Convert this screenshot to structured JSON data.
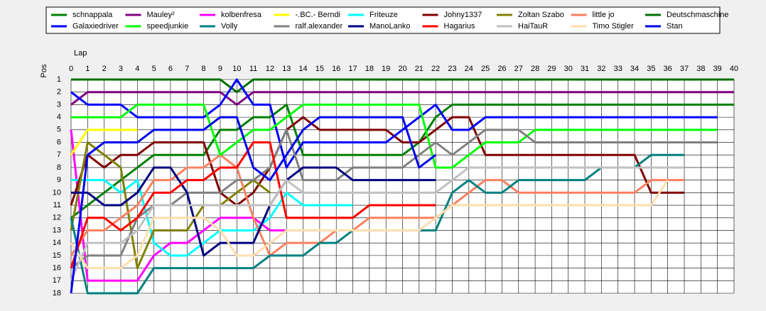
{
  "chart_data": {
    "type": "line",
    "x_label": "Lap",
    "y_label": "Pos",
    "x": [
      0,
      1,
      2,
      3,
      4,
      5,
      6,
      7,
      8,
      9,
      10,
      11,
      12,
      13,
      14,
      15,
      16,
      17,
      18,
      19,
      20,
      21,
      22,
      23,
      24,
      25,
      26,
      27,
      28,
      29,
      30,
      31,
      32,
      33,
      34,
      35,
      36,
      37,
      38,
      39,
      40
    ],
    "xlim": [
      0,
      40
    ],
    "xticks": [
      0,
      1,
      2,
      3,
      4,
      5,
      6,
      7,
      8,
      9,
      10,
      11,
      12,
      13,
      14,
      15,
      16,
      17,
      18,
      19,
      20,
      21,
      22,
      23,
      24,
      25,
      26,
      27,
      28,
      29,
      30,
      31,
      32,
      33,
      34,
      35,
      36,
      37,
      38,
      39,
      40
    ],
    "ylim": [
      18,
      1
    ],
    "yticks": [
      1,
      2,
      3,
      4,
      5,
      6,
      7,
      8,
      9,
      10,
      11,
      12,
      13,
      14,
      15,
      16,
      17,
      18
    ],
    "grid": true,
    "series": [
      {
        "name": "schnappala",
        "color": "#008000",
        "values": [
          12,
          11,
          10,
          9,
          8,
          7,
          7,
          7,
          7,
          5,
          5,
          4,
          4,
          3,
          7,
          7,
          7,
          7,
          7,
          7,
          7,
          6,
          4,
          3,
          3,
          3,
          3,
          3,
          3,
          3,
          3,
          3,
          3,
          3,
          3,
          3,
          3,
          3,
          3,
          3,
          3
        ]
      },
      {
        "name": "Mauley²",
        "color": "#800080",
        "values": [
          3,
          2,
          2,
          2,
          2,
          2,
          2,
          2,
          2,
          2,
          3,
          2,
          2,
          2,
          2,
          2,
          2,
          2,
          2,
          2,
          2,
          2,
          2,
          2,
          2,
          2,
          2,
          2,
          2,
          2,
          2,
          2,
          2,
          2,
          2,
          2,
          2,
          2,
          2,
          2,
          2
        ]
      },
      {
        "name": "kolbenfresa",
        "color": "#ff00ff",
        "values": [
          5,
          17,
          17,
          17,
          17,
          15,
          14,
          14,
          13,
          12,
          12,
          12,
          13,
          13,
          13,
          13,
          null,
          null,
          null,
          null,
          null,
          null,
          null,
          null,
          null,
          null,
          null,
          null,
          null,
          null,
          null,
          null,
          null,
          null,
          null,
          null,
          null,
          null,
          null,
          null,
          null
        ]
      },
      {
        "name": "-.BC.- Berndi",
        "color": "#ffff00",
        "values": [
          7,
          5,
          5,
          5,
          5,
          null,
          null,
          null,
          null,
          null,
          null,
          null,
          null,
          null,
          null,
          null,
          null,
          null,
          null,
          null,
          null,
          null,
          null,
          null,
          null,
          null,
          null,
          null,
          null,
          null,
          null,
          null,
          null,
          null,
          null,
          null,
          null,
          null,
          null,
          null,
          null
        ]
      },
      {
        "name": "Friteuze",
        "color": "#00ffff",
        "values": [
          9,
          9,
          9,
          10,
          9,
          14,
          15,
          15,
          14,
          13,
          13,
          13,
          12,
          10,
          11,
          11,
          11,
          11,
          null,
          null,
          null,
          null,
          null,
          null,
          null,
          null,
          null,
          null,
          null,
          null,
          null,
          null,
          null,
          null,
          null,
          null,
          null,
          null,
          null,
          null,
          null
        ]
      },
      {
        "name": "Johny1337",
        "color": "#800000",
        "values": [
          11,
          7,
          8,
          7,
          7,
          6,
          6,
          6,
          6,
          10,
          11,
          10,
          8,
          5,
          4,
          5,
          5,
          5,
          5,
          5,
          6,
          6,
          5,
          4,
          4,
          7,
          7,
          7,
          7,
          7,
          7,
          7,
          7,
          7,
          7,
          10,
          10,
          10,
          null,
          null,
          null
        ]
      },
      {
        "name": "Zoltan Szabo",
        "color": "#808000",
        "values": [
          13,
          6,
          7,
          8,
          16,
          13,
          13,
          13,
          11,
          11,
          10,
          9,
          10,
          null,
          null,
          null,
          null,
          null,
          null,
          null,
          null,
          null,
          null,
          null,
          null,
          null,
          null,
          null,
          null,
          null,
          null,
          null,
          null,
          null,
          null,
          null,
          null,
          null,
          null,
          null,
          null
        ]
      },
      {
        "name": "little jo",
        "color": "#fa8060",
        "values": [
          15,
          13,
          13,
          12,
          11,
          9,
          9,
          8,
          8,
          7,
          8,
          12,
          15,
          14,
          14,
          14,
          13,
          13,
          12,
          12,
          12,
          12,
          12,
          11,
          10,
          9,
          9,
          10,
          10,
          10,
          10,
          10,
          10,
          10,
          10,
          9,
          9,
          9,
          null,
          null,
          null
        ]
      },
      {
        "name": "Deutschmaschine",
        "color": "#007000",
        "values": [
          1,
          1,
          1,
          1,
          1,
          1,
          1,
          1,
          1,
          1,
          2,
          1,
          1,
          1,
          1,
          1,
          1,
          1,
          1,
          1,
          1,
          1,
          1,
          1,
          1,
          1,
          1,
          1,
          1,
          1,
          1,
          1,
          1,
          1,
          1,
          1,
          1,
          1,
          1,
          1,
          1
        ]
      },
      {
        "name": "Galaxiedriver",
        "color": "#0000ff",
        "values": [
          2,
          3,
          3,
          3,
          4,
          4,
          4,
          4,
          4,
          3,
          1,
          3,
          3,
          8,
          6,
          6,
          6,
          6,
          6,
          6,
          5,
          4,
          3,
          5,
          5,
          4,
          4,
          4,
          4,
          4,
          4,
          4,
          4,
          4,
          4,
          4,
          4,
          4,
          4,
          4,
          null
        ]
      },
      {
        "name": "speedjunkie",
        "color": "#00ff00",
        "values": [
          4,
          4,
          4,
          4,
          3,
          3,
          3,
          3,
          3,
          7,
          6,
          5,
          5,
          4,
          3,
          3,
          3,
          3,
          3,
          3,
          3,
          3,
          8,
          8,
          7,
          6,
          6,
          6,
          5,
          5,
          5,
          5,
          5,
          5,
          5,
          5,
          5,
          5,
          5,
          5,
          null
        ]
      },
      {
        "name": "Volly",
        "color": "#008080",
        "values": [
          12,
          18,
          18,
          18,
          18,
          16,
          16,
          16,
          16,
          16,
          16,
          16,
          15,
          15,
          15,
          14,
          14,
          13,
          13,
          13,
          13,
          13,
          13,
          10,
          9,
          10,
          10,
          9,
          9,
          9,
          9,
          9,
          8,
          8,
          8,
          7,
          7,
          7,
          null,
          null,
          null
        ]
      },
      {
        "name": "ralf.alexander",
        "color": "#808080",
        "values": [
          16,
          15,
          15,
          15,
          12,
          11,
          11,
          10,
          10,
          10,
          9,
          9,
          8,
          5,
          9,
          9,
          9,
          8,
          8,
          8,
          8,
          7,
          6,
          7,
          6,
          5,
          5,
          5,
          6,
          6,
          6,
          6,
          6,
          6,
          6,
          6,
          6,
          6,
          6,
          6,
          null
        ]
      },
      {
        "name": "ManoLanko",
        "color": "#000080",
        "values": [
          10,
          10,
          11,
          11,
          10,
          8,
          8,
          10,
          15,
          14,
          14,
          14,
          11,
          9,
          8,
          8,
          8,
          9,
          9,
          9,
          9,
          9,
          9,
          null,
          null,
          null,
          null,
          null,
          null,
          null,
          null,
          null,
          null,
          null,
          null,
          null,
          null,
          null,
          null,
          null,
          null
        ]
      },
      {
        "name": "Hagarius",
        "color": "#ff0000",
        "values": [
          16,
          12,
          12,
          13,
          12,
          10,
          10,
          9,
          9,
          8,
          8,
          6,
          6,
          12,
          12,
          12,
          12,
          12,
          11,
          11,
          11,
          11,
          11,
          null,
          null,
          null,
          null,
          null,
          null,
          null,
          null,
          null,
          null,
          null,
          null,
          null,
          null,
          null,
          null,
          null,
          null
        ]
      },
      {
        "name": "HaiTauR",
        "color": "#c0c0c0",
        "values": [
          17,
          14,
          14,
          14,
          13,
          11,
          11,
          11,
          11,
          11,
          11,
          11,
          11,
          9,
          10,
          10,
          10,
          10,
          10,
          10,
          10,
          10,
          10,
          9,
          8,
          8,
          8,
          8,
          8,
          8,
          8,
          8,
          8,
          8,
          8,
          8,
          8,
          8,
          null,
          null,
          null
        ]
      },
      {
        "name": "Timo Stigler",
        "color": "#ffdead",
        "values": [
          14,
          16,
          16,
          16,
          15,
          12,
          12,
          12,
          12,
          13,
          15,
          15,
          14,
          13,
          13,
          13,
          13,
          13,
          13,
          13,
          13,
          13,
          12,
          11,
          11,
          11,
          11,
          11,
          11,
          11,
          11,
          11,
          11,
          11,
          11,
          11,
          9,
          null,
          null,
          null,
          null
        ]
      },
      {
        "name": "Stan",
        "color": "#0000ee",
        "values": [
          18,
          7,
          6,
          6,
          6,
          5,
          5,
          5,
          5,
          4,
          4,
          8,
          9,
          7,
          5,
          4,
          4,
          4,
          4,
          4,
          4,
          8,
          7,
          null,
          null,
          null,
          null,
          null,
          null,
          null,
          null,
          null,
          null,
          null,
          null,
          null,
          null,
          null,
          null,
          null,
          null
        ]
      }
    ]
  }
}
